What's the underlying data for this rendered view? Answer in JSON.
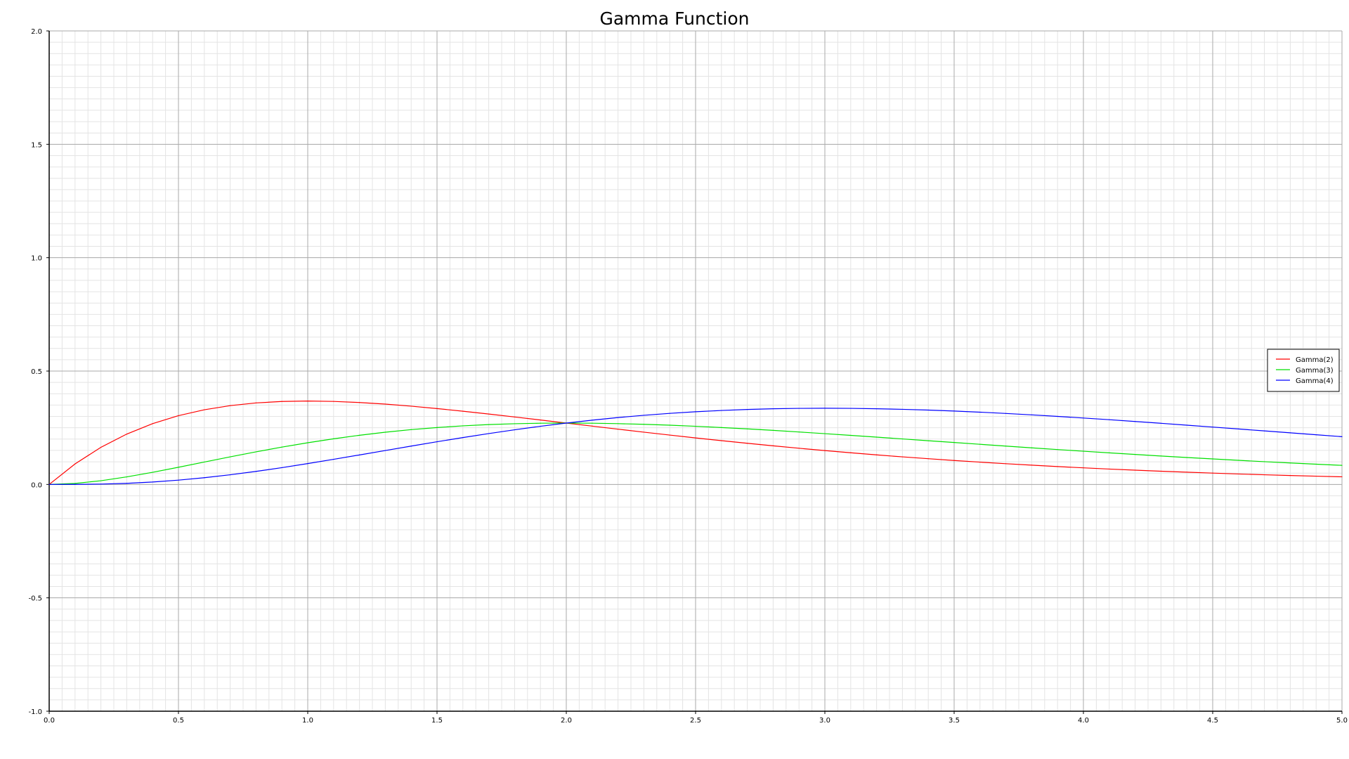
{
  "chart_data": {
    "type": "line",
    "title": "Gamma Function",
    "xlabel": "",
    "ylabel": "",
    "xlim": [
      0.0,
      5.0
    ],
    "ylim": [
      -1.0,
      2.0
    ],
    "xticks": [
      "0.0",
      "0.5",
      "1.0",
      "1.5",
      "2.0",
      "2.5",
      "3.0",
      "3.5",
      "4.0",
      "4.5",
      "5.0"
    ],
    "yticks": [
      "-1.0",
      "-0.5",
      "0.0",
      "0.5",
      "1.0",
      "1.5",
      "2.0"
    ],
    "grid": true,
    "legend_position": "right",
    "x": [
      0.0,
      0.1,
      0.2,
      0.3,
      0.4,
      0.5,
      0.6,
      0.7,
      0.8,
      0.9,
      1.0,
      1.1,
      1.2,
      1.3,
      1.4,
      1.5,
      1.6,
      1.7,
      1.8,
      1.9,
      2.0,
      2.1,
      2.2,
      2.3,
      2.4,
      2.5,
      2.6,
      2.7,
      2.8,
      2.9,
      3.0,
      3.1,
      3.2,
      3.3,
      3.4,
      3.5,
      3.6,
      3.7,
      3.8,
      3.9,
      4.0,
      4.1,
      4.2,
      4.3,
      4.4,
      4.5,
      4.6,
      4.7,
      4.8,
      4.9,
      5.0
    ],
    "series": [
      {
        "name": "Gamma(2)",
        "color": "#ff0000",
        "values": [
          0.0,
          0.0905,
          0.1637,
          0.2222,
          0.2681,
          0.3033,
          0.3293,
          0.3476,
          0.3595,
          0.3659,
          0.3679,
          0.3662,
          0.3614,
          0.3543,
          0.3452,
          0.3347,
          0.323,
          0.3106,
          0.2975,
          0.2842,
          0.2707,
          0.2572,
          0.2438,
          0.2306,
          0.2177,
          0.2052,
          0.1931,
          0.1815,
          0.1703,
          0.1596,
          0.1494,
          0.1397,
          0.1304,
          0.1217,
          0.1135,
          0.1057,
          0.0984,
          0.0915,
          0.085,
          0.0789,
          0.0733,
          0.0679,
          0.063,
          0.0583,
          0.054,
          0.05,
          0.0462,
          0.0427,
          0.0395,
          0.0365,
          0.0337
        ]
      },
      {
        "name": "Gamma(3)",
        "color": "#00e000",
        "values": [
          0.0,
          0.0045,
          0.0164,
          0.0333,
          0.0536,
          0.0758,
          0.0988,
          0.1217,
          0.1438,
          0.1647,
          0.1839,
          0.2014,
          0.2169,
          0.2303,
          0.2417,
          0.251,
          0.2584,
          0.264,
          0.2678,
          0.27,
          0.2707,
          0.27,
          0.2681,
          0.2652,
          0.2613,
          0.2565,
          0.251,
          0.245,
          0.2384,
          0.2314,
          0.224,
          0.2165,
          0.2087,
          0.2008,
          0.1929,
          0.185,
          0.1771,
          0.1692,
          0.1615,
          0.1539,
          0.1465,
          0.1393,
          0.1323,
          0.1254,
          0.1188,
          0.1125,
          0.1063,
          0.1004,
          0.0948,
          0.0894,
          0.0842
        ]
      },
      {
        "name": "Gamma(4)",
        "color": "#0000ff",
        "values": [
          0.0,
          0.0002,
          0.0016,
          0.005,
          0.0107,
          0.019,
          0.0296,
          0.0426,
          0.0575,
          0.0741,
          0.092,
          0.1108,
          0.1301,
          0.1497,
          0.1692,
          0.1883,
          0.2067,
          0.2244,
          0.241,
          0.2565,
          0.2707,
          0.2835,
          0.295,
          0.305,
          0.3135,
          0.3206,
          0.3263,
          0.3307,
          0.3337,
          0.3355,
          0.3361,
          0.3355,
          0.3339,
          0.3313,
          0.3279,
          0.3237,
          0.3188,
          0.3131,
          0.3069,
          0.3001,
          0.293,
          0.2855,
          0.2777,
          0.2697,
          0.2614,
          0.2531,
          0.2446,
          0.2361,
          0.2276,
          0.2191,
          0.2106
        ]
      }
    ]
  }
}
